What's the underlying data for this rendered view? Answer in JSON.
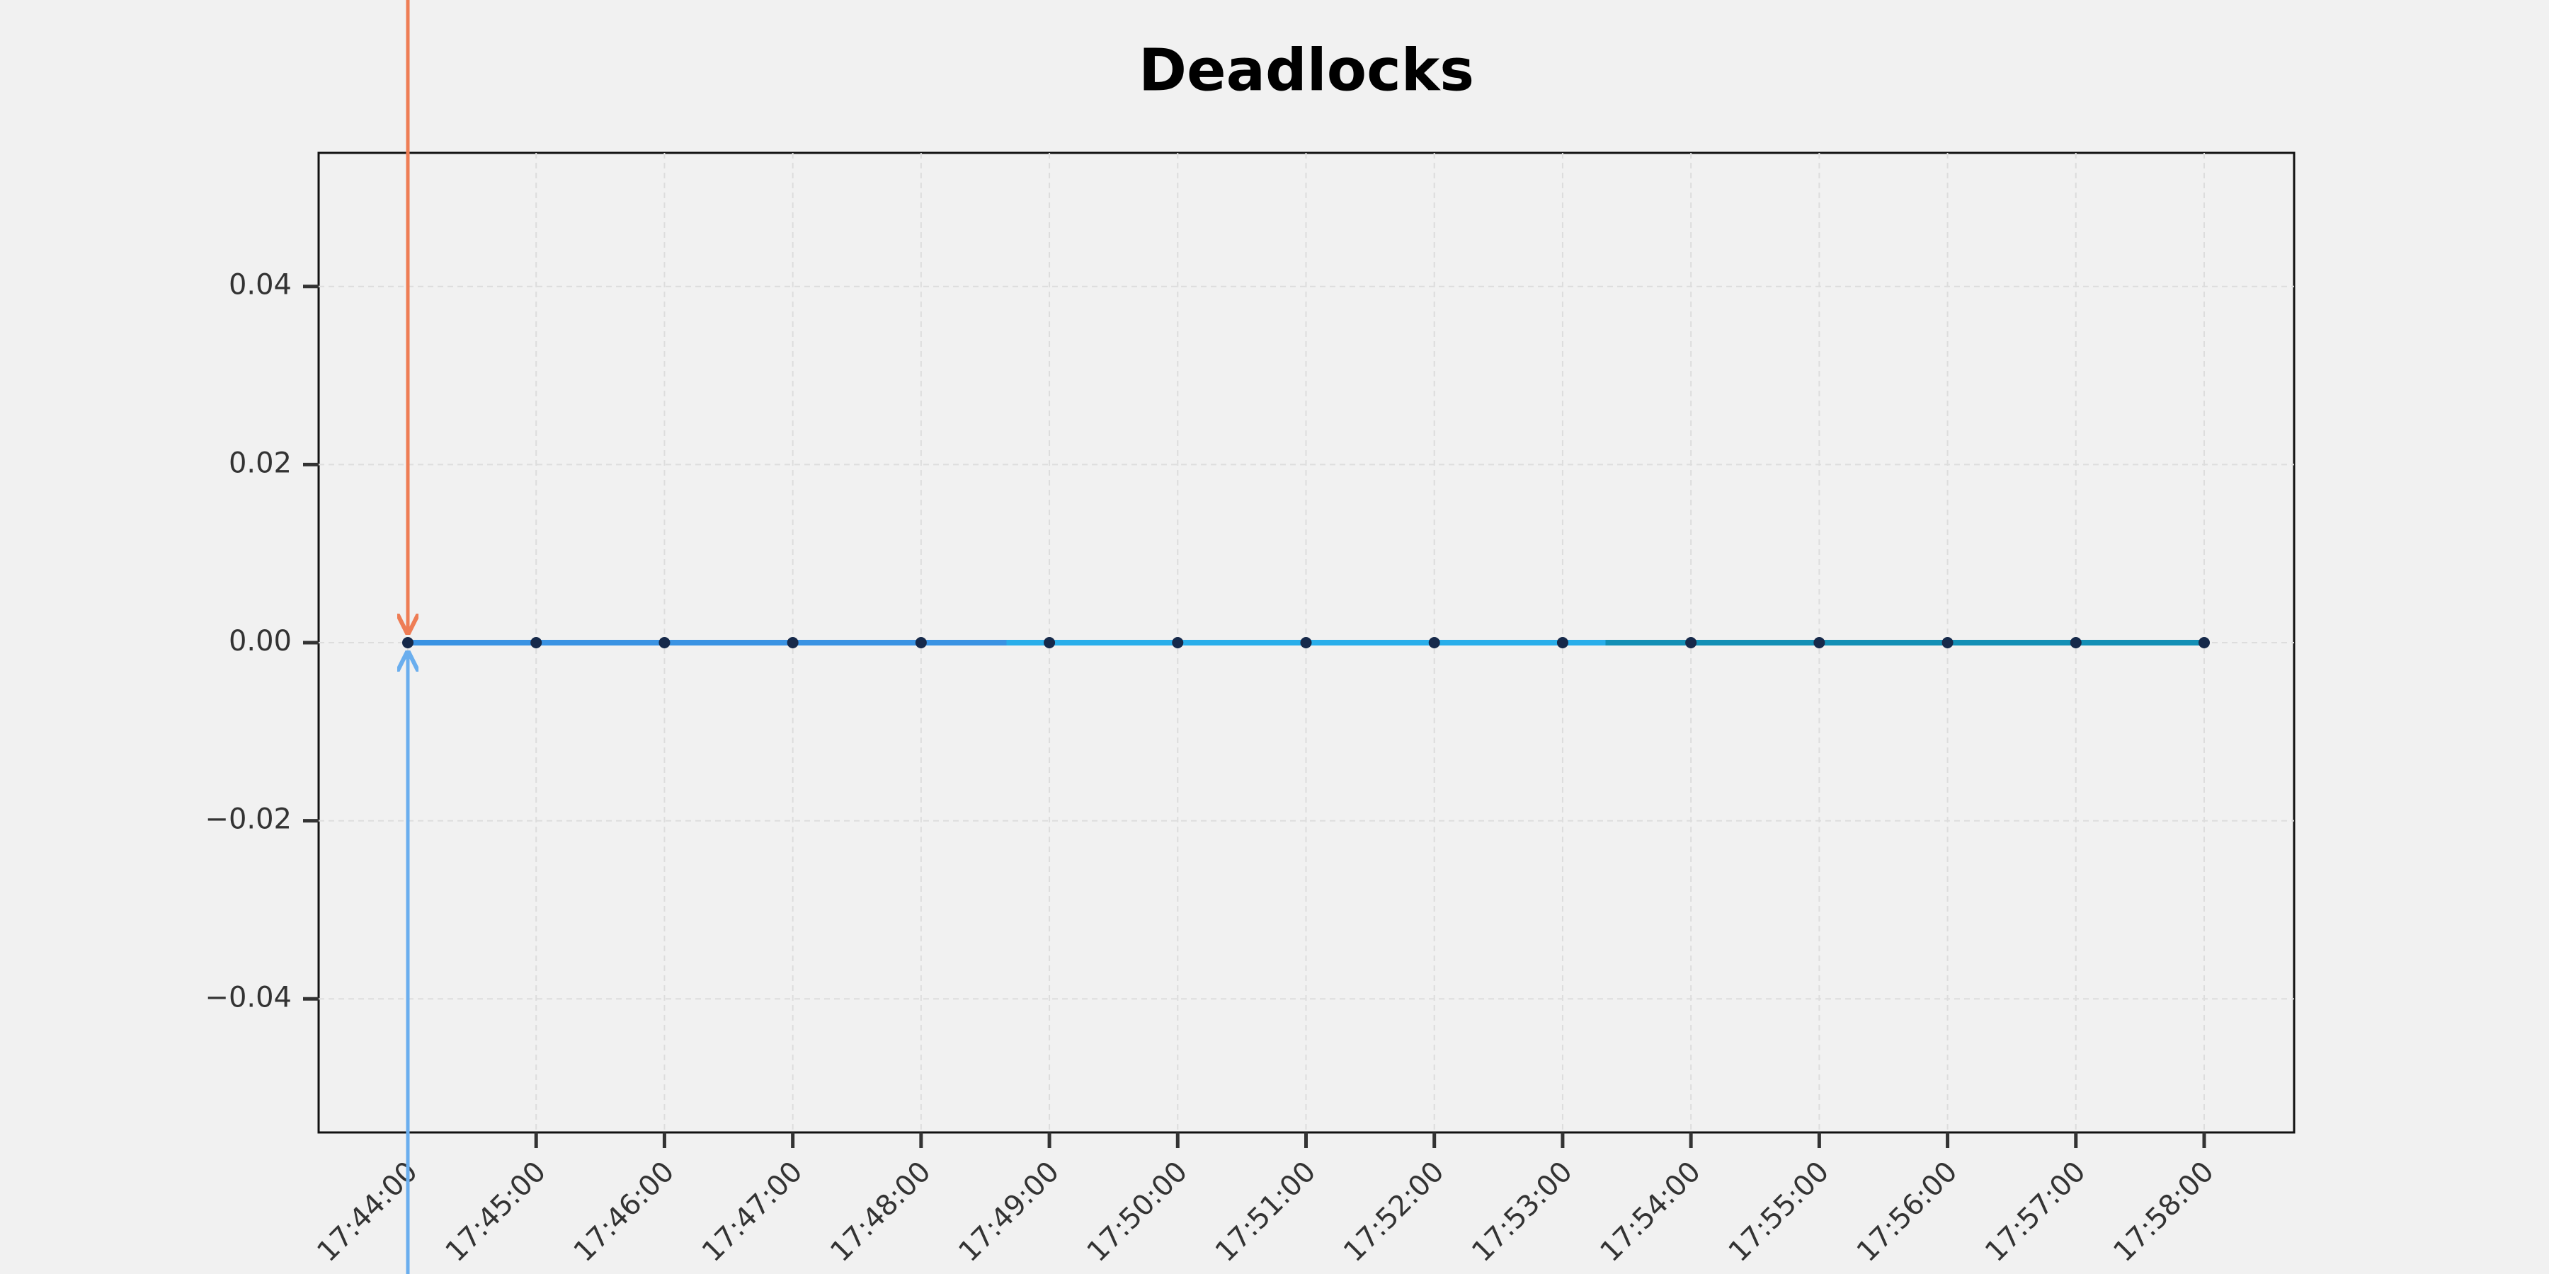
{
  "chart_data": {
    "type": "line",
    "title": "Deadlocks",
    "categories": [
      "17:44:00",
      "17:45:00",
      "17:46:00",
      "17:47:00",
      "17:48:00",
      "17:49:00",
      "17:50:00",
      "17:51:00",
      "17:52:00",
      "17:53:00",
      "17:54:00",
      "17:55:00",
      "17:56:00",
      "17:57:00",
      "17:58:00"
    ],
    "series": [
      {
        "values": [
          0,
          0,
          0,
          0,
          0,
          0,
          0,
          0,
          0,
          0,
          0,
          0,
          0,
          0,
          0
        ],
        "colors": [
          "#3a93e3",
          "#29aeea",
          "#138fb5"
        ],
        "marker_color": "#16294a"
      }
    ],
    "ylim": [
      -0.055,
      0.055
    ],
    "yticks": [
      {
        "value": -0.04,
        "label": "−0.04"
      },
      {
        "value": -0.02,
        "label": "−0.02"
      },
      {
        "value": 0,
        "label": "0.00"
      },
      {
        "value": 0.02,
        "label": "0.02"
      },
      {
        "value": 0.04,
        "label": "0.04"
      }
    ],
    "grid": true
  }
}
